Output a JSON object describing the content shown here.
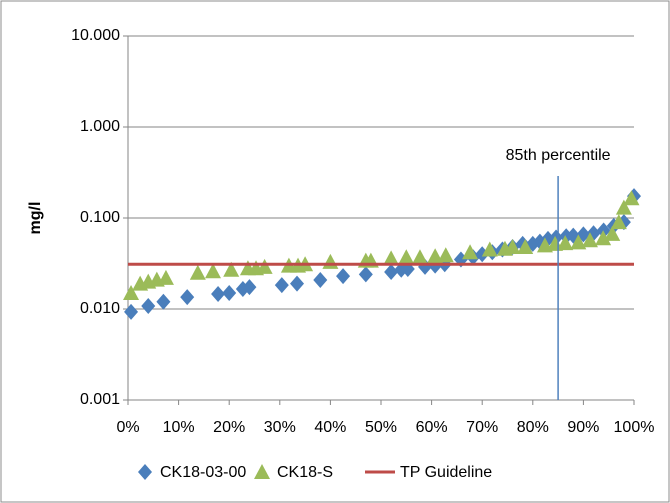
{
  "chart_data": {
    "type": "scatter",
    "y_label": "mg/l",
    "log_y": true,
    "grid": true,
    "legend": "bottom",
    "xlim": [
      0,
      100
    ],
    "ylim": [
      0.001,
      10
    ],
    "xticks": [
      {
        "value": 0,
        "label": "0%"
      },
      {
        "value": 10,
        "label": "10%"
      },
      {
        "value": 20,
        "label": "20%"
      },
      {
        "value": 30,
        "label": "30%"
      },
      {
        "value": 40,
        "label": "40%"
      },
      {
        "value": 50,
        "label": "50%"
      },
      {
        "value": 60,
        "label": "60%"
      },
      {
        "value": 70,
        "label": "70%"
      },
      {
        "value": 80,
        "label": "80%"
      },
      {
        "value": 90,
        "label": "90%"
      },
      {
        "value": 100,
        "label": "100%"
      }
    ],
    "yticks": [
      {
        "value": 0.001,
        "label": "0.001"
      },
      {
        "value": 0.01,
        "label": "0.010"
      },
      {
        "value": 0.1,
        "label": "0.100"
      },
      {
        "value": 1,
        "label": "1.000"
      },
      {
        "value": 10,
        "label": "10.000"
      }
    ],
    "annotation": {
      "text": "85th percentile",
      "x": 85,
      "color": "#4f81bd"
    },
    "series": [
      {
        "name": "CK18-03-00",
        "color": "#4a7ebb",
        "marker": "diamond",
        "x": [
          0.6,
          4,
          7,
          11.7,
          17.8,
          20,
          22.7,
          24,
          30.4,
          33.4,
          38,
          42.5,
          47,
          52,
          54,
          55.3,
          58.7,
          60.7,
          62.6,
          65.8,
          68.2,
          70,
          72,
          74,
          76,
          78,
          80,
          81.4,
          83,
          84.6,
          86.6,
          88,
          90,
          92,
          94,
          96,
          98,
          100
        ],
        "values": [
          0.0093,
          0.0108,
          0.012,
          0.0135,
          0.0146,
          0.015,
          0.0166,
          0.0174,
          0.0183,
          0.019,
          0.0208,
          0.023,
          0.024,
          0.0255,
          0.027,
          0.0275,
          0.029,
          0.03,
          0.031,
          0.035,
          0.037,
          0.04,
          0.042,
          0.045,
          0.048,
          0.052,
          0.052,
          0.055,
          0.059,
          0.061,
          0.063,
          0.064,
          0.066,
          0.068,
          0.073,
          0.082,
          0.09,
          0.174
        ]
      },
      {
        "name": "CK18-S",
        "color": "#9bbb59",
        "marker": "triangle",
        "x": [
          0.6,
          2.4,
          4,
          5.7,
          7.5,
          13.8,
          16.8,
          20.4,
          23.7,
          25.3,
          27,
          31.8,
          33.6,
          35,
          40,
          47,
          48,
          52,
          55,
          57.7,
          60.7,
          62.8,
          67.6,
          71.5,
          74.5,
          76,
          78.5,
          82.4,
          84.4,
          86.4,
          89,
          91.3,
          93.9,
          95.7,
          97,
          98,
          99.5
        ],
        "values": [
          0.015,
          0.019,
          0.02,
          0.021,
          0.022,
          0.025,
          0.026,
          0.027,
          0.028,
          0.028,
          0.029,
          0.03,
          0.03,
          0.031,
          0.033,
          0.034,
          0.034,
          0.036,
          0.037,
          0.037,
          0.038,
          0.039,
          0.042,
          0.045,
          0.046,
          0.048,
          0.048,
          0.05,
          0.052,
          0.053,
          0.054,
          0.057,
          0.06,
          0.067,
          0.09,
          0.13,
          0.165
        ]
      },
      {
        "name": "TP Guideline",
        "color": "#be4b48",
        "marker": "line",
        "x": [
          0,
          100
        ],
        "values": [
          0.031,
          0.031
        ]
      }
    ]
  }
}
